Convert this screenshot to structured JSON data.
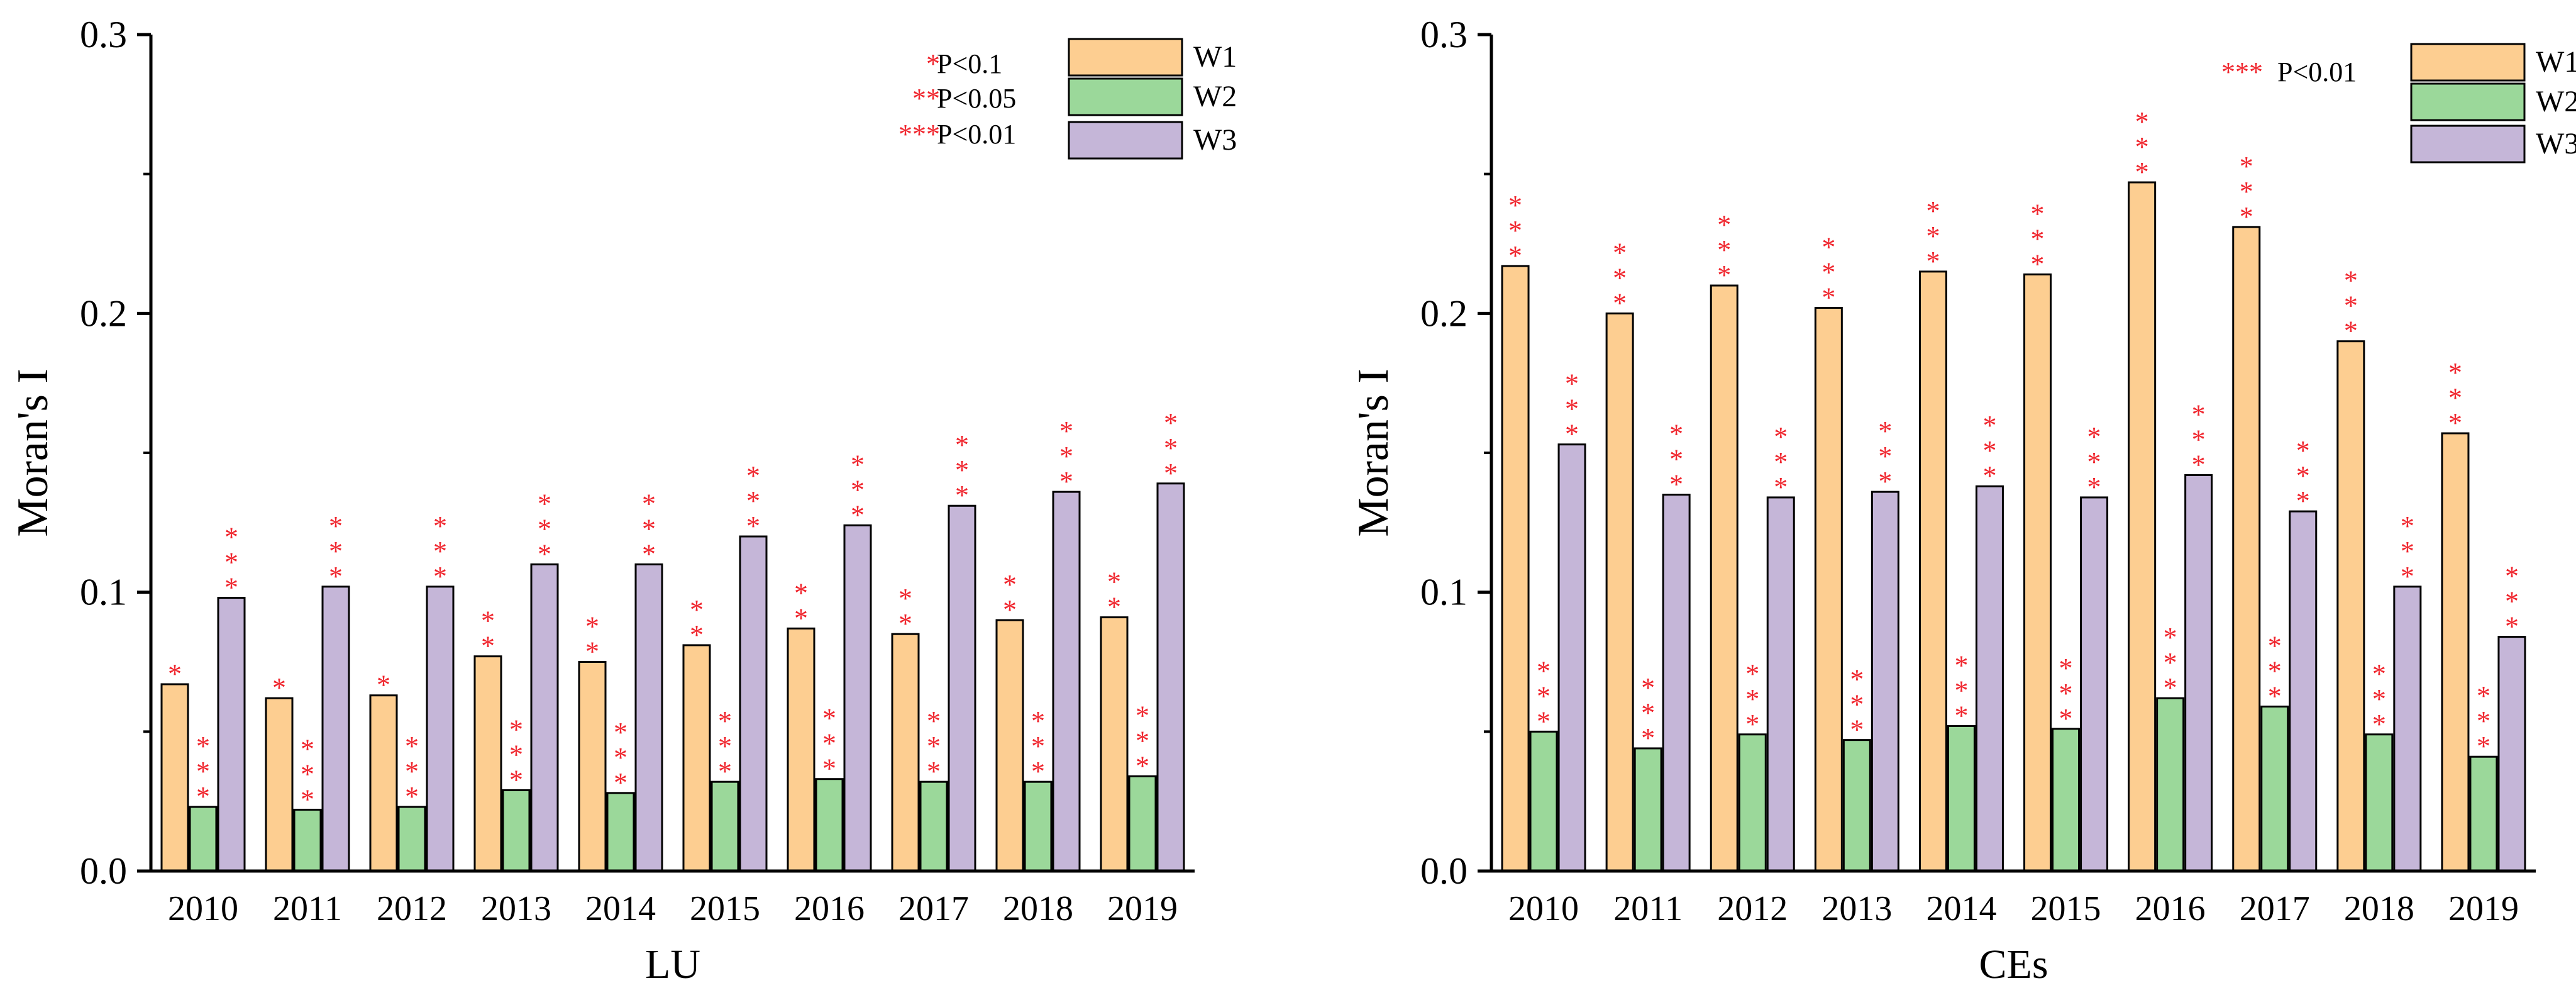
{
  "colors": {
    "W1": "#FDCE91",
    "W2": "#9BD89A",
    "W3": "#C5B6D8",
    "star": "#F0262E",
    "axis": "#000000"
  },
  "chart_data": [
    {
      "type": "bar",
      "title": "",
      "xlabel": "LU",
      "ylabel": "Moran's I",
      "ylim": [
        0,
        0.3
      ],
      "yticks": [
        "0.0",
        "0.1",
        "0.2",
        "0.3"
      ],
      "categories": [
        "2010",
        "2011",
        "2012",
        "2013",
        "2014",
        "2015",
        "2016",
        "2017",
        "2018",
        "2019"
      ],
      "series": [
        {
          "name": "W1",
          "values": [
            0.067,
            0.062,
            0.063,
            0.077,
            0.075,
            0.081,
            0.087,
            0.085,
            0.09,
            0.091
          ],
          "stars": [
            "*",
            "*",
            "*",
            "**",
            "**",
            "**",
            "**",
            "**",
            "**",
            "**"
          ]
        },
        {
          "name": "W2",
          "values": [
            0.023,
            0.022,
            0.023,
            0.029,
            0.028,
            0.032,
            0.033,
            0.032,
            0.032,
            0.034
          ],
          "stars": [
            "***",
            "***",
            "***",
            "***",
            "***",
            "***",
            "***",
            "***",
            "***",
            "***"
          ]
        },
        {
          "name": "W3",
          "values": [
            0.098,
            0.102,
            0.102,
            0.11,
            0.11,
            0.12,
            0.124,
            0.131,
            0.136,
            0.139
          ],
          "stars": [
            "***",
            "***",
            "***",
            "***",
            "***",
            "***",
            "***",
            "***",
            "***",
            "***"
          ]
        }
      ],
      "significance_legend": [
        {
          "stars": "*",
          "label": "P<0.1"
        },
        {
          "stars": "**",
          "label": "P<0.05"
        },
        {
          "stars": "***",
          "label": "P<0.01"
        }
      ],
      "legend_position": "top-right"
    },
    {
      "type": "bar",
      "title": "",
      "xlabel": "CEs",
      "ylabel": "Moran's I",
      "ylim": [
        0,
        0.3
      ],
      "yticks": [
        "0.0",
        "0.1",
        "0.2",
        "0.3"
      ],
      "categories": [
        "2010",
        "2011",
        "2012",
        "2013",
        "2014",
        "2015",
        "2016",
        "2017",
        "2018",
        "2019"
      ],
      "series": [
        {
          "name": "W1",
          "values": [
            0.217,
            0.2,
            0.21,
            0.202,
            0.215,
            0.214,
            0.247,
            0.231,
            0.19,
            0.157
          ],
          "stars": [
            "***",
            "***",
            "***",
            "***",
            "***",
            "***",
            "***",
            "***",
            "***",
            "***"
          ]
        },
        {
          "name": "W2",
          "values": [
            0.05,
            0.044,
            0.049,
            0.047,
            0.052,
            0.051,
            0.062,
            0.059,
            0.049,
            0.041
          ],
          "stars": [
            "***",
            "***",
            "***",
            "***",
            "***",
            "***",
            "***",
            "***",
            "***",
            "***"
          ]
        },
        {
          "name": "W3",
          "values": [
            0.153,
            0.135,
            0.134,
            0.136,
            0.138,
            0.134,
            0.142,
            0.129,
            0.102,
            0.084
          ],
          "stars": [
            "***",
            "***",
            "***",
            "***",
            "***",
            "***",
            "***",
            "***",
            "***",
            "***"
          ]
        }
      ],
      "significance_legend": [
        {
          "stars": "***",
          "label": "P<0.01"
        }
      ],
      "legend_position": "top-right"
    }
  ]
}
